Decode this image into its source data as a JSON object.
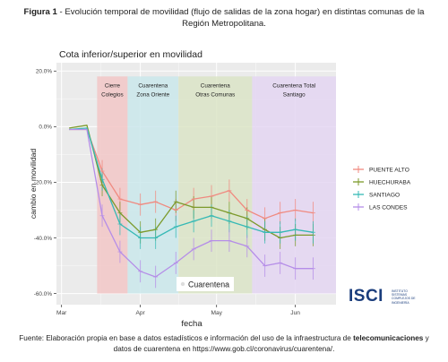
{
  "caption": {
    "label": "Figura 1",
    "text": " - Evolución temporal de movilidad (flujo de salidas de la zona hogar) en distintas comunas de la Región Metropolitana."
  },
  "footer": {
    "before": "Fuente: Elaboración propia en base a datos estadísticos e información del uso de la infraestructura de ",
    "bold": "telecomunicaciones",
    "after": " y datos de cuarentena en https://www.gob.cl/coronavirus/cuarentena/."
  },
  "logo": {
    "main": "ISCI",
    "sub": "INSTITUTO SISTEMAS COMPLEJOS DE INGENIERÍA"
  },
  "chart_data": {
    "type": "line",
    "title": "Cota inferior/superior en movilidad",
    "xlabel": "fecha",
    "ylabel": "cambio en movilidad",
    "x_ticks": [
      {
        "label": "Mar",
        "day": 0
      },
      {
        "label": "Apr",
        "day": 31
      },
      {
        "label": "May",
        "day": 61
      },
      {
        "label": "Jun",
        "day": 92
      }
    ],
    "y_ticks": [
      20,
      0,
      -20,
      -40,
      -60
    ],
    "y_tick_labels": [
      "20.0%",
      "0.0%",
      "-20.0%",
      "-40.0%",
      "-60.0%"
    ],
    "xlim": [
      -2,
      108
    ],
    "ylim": [
      -64,
      23
    ],
    "grid": true,
    "legend_position": "right",
    "regions": [
      {
        "label": [
          "Cierre",
          "Colegios"
        ],
        "start": 14,
        "end": 26,
        "color": "#f2c4c4"
      },
      {
        "label": [
          "Cuarentena",
          "Zona Oriente"
        ],
        "start": 26,
        "end": 46,
        "color": "#c8e7ea"
      },
      {
        "label": [
          "Cuarentena",
          "Otras Comunas"
        ],
        "start": 46,
        "end": 75,
        "color": "#d9e3c4"
      },
      {
        "label": [
          "Cuarentena Total",
          "Santiago"
        ],
        "start": 75,
        "end": 108,
        "color": "#e3d4f2"
      }
    ],
    "x": [
      3,
      10,
      16,
      23,
      31,
      37,
      45,
      52,
      59,
      66,
      73,
      80,
      86,
      92,
      99
    ],
    "series": [
      {
        "name": "PUENTE ALTO",
        "color": "#f08a80",
        "values": [
          -1,
          -1,
          -16,
          -26,
          -28,
          -27,
          -30,
          -26,
          -25,
          -23,
          -30,
          -33,
          -31,
          -30,
          -31
        ]
      },
      {
        "name": "HUECHURABA",
        "color": "#7c9a2b",
        "values": [
          -0.5,
          0.5,
          -21,
          -31,
          -38,
          -37,
          -27,
          -29,
          -29,
          -31,
          -33,
          -37,
          -40,
          -39,
          -39
        ]
      },
      {
        "name": "SANTIAGO",
        "color": "#35b9b5",
        "values": [
          -1,
          -0.5,
          -19,
          -35,
          -40,
          -40,
          -36,
          -34,
          -32,
          -34,
          -36,
          -38,
          -38,
          -37,
          -38
        ]
      },
      {
        "name": "LAS CONDES",
        "color": "#b58de8",
        "values": [
          -1,
          -1,
          -32,
          -45,
          -52,
          -54,
          -49,
          -44,
          -41,
          -41,
          -43,
          -50,
          -49,
          -51,
          -51
        ]
      }
    ],
    "annotation": "Cuarentena"
  }
}
